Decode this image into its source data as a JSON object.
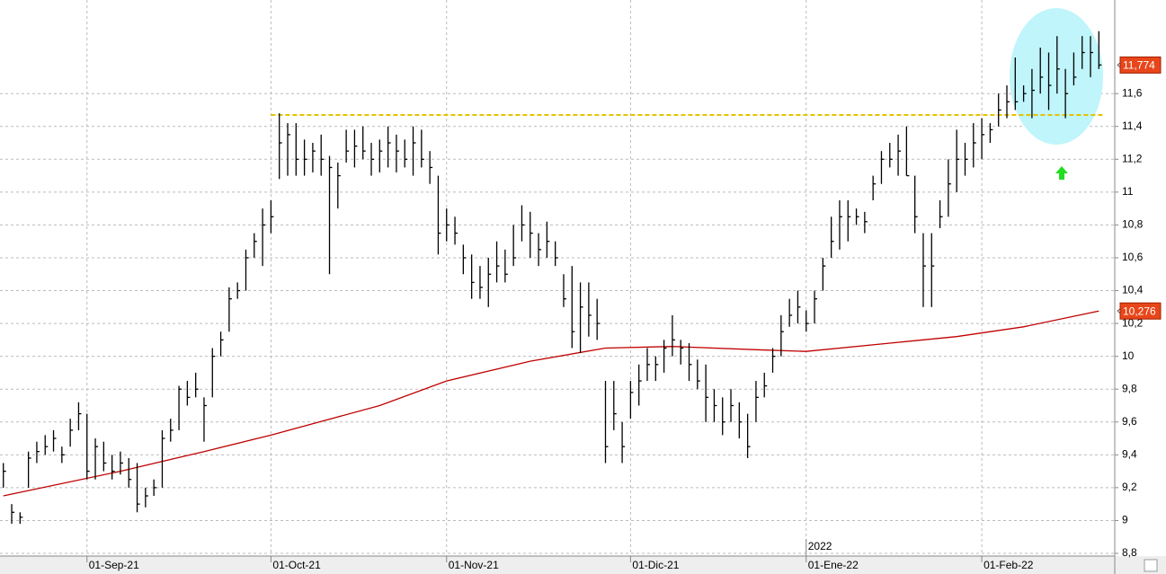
{
  "chart_data": {
    "type": "ohlc",
    "xlim": [
      -0.4,
      132.9
    ],
    "ylim": [
      8.8,
      12.17
    ],
    "yticks": [
      {
        "value": 8.8,
        "label": "8,8"
      },
      9,
      {
        "value": 9.2,
        "label": "9,2"
      },
      {
        "value": 9.4,
        "label": "9,4"
      },
      {
        "value": 9.6,
        "label": "9,6"
      },
      {
        "value": 9.8,
        "label": "9,8"
      },
      10,
      {
        "value": 10.2,
        "label": "10,2"
      },
      {
        "value": 10.4,
        "label": "10,4"
      },
      {
        "value": 10.6,
        "label": "10,6"
      },
      {
        "value": 10.8,
        "label": "10,8"
      },
      11,
      {
        "value": 11.2,
        "label": "11,2"
      },
      {
        "value": 11.4,
        "label": "11,4"
      },
      {
        "value": 11.6,
        "label": "11,6"
      }
    ],
    "xticks": [
      {
        "value": 10,
        "label": "01-Sep-21"
      },
      {
        "value": 32,
        "label": "01-Oct-21"
      },
      {
        "value": 53,
        "label": "01-Nov-21"
      },
      {
        "value": 75,
        "label": "01-Dic-21"
      },
      {
        "value": 96,
        "label": "01-Ene-22"
      },
      {
        "value": 117,
        "label": "01-Feb-22"
      }
    ],
    "year_marker": {
      "value": 96,
      "label": "2022"
    },
    "grid": true,
    "color": "#000000",
    "high": [
      9.35,
      9.1,
      9.05,
      9.42,
      9.48,
      9.52,
      9.55,
      9.45,
      9.62,
      9.72,
      9.65,
      9.5,
      9.48,
      9.4,
      9.42,
      9.38,
      9.35,
      9.2,
      9.25,
      9.55,
      9.62,
      9.82,
      9.85,
      9.9,
      9.75,
      10.05,
      10.15,
      10.42,
      10.45,
      10.65,
      10.75,
      10.9,
      10.95,
      11.48,
      11.42,
      11.42,
      11.32,
      11.3,
      11.35,
      11.22,
      11.18,
      11.38,
      11.38,
      11.4,
      11.3,
      11.32,
      11.4,
      11.35,
      11.32,
      11.4,
      11.38,
      11.25,
      11.1,
      10.9,
      10.85,
      10.68,
      10.62,
      10.55,
      10.6,
      10.7,
      10.65,
      10.8,
      10.92,
      10.88,
      10.75,
      10.82,
      10.7,
      10.5,
      10.55,
      10.45,
      10.45,
      10.35,
      9.85,
      9.85,
      9.6,
      9.85,
      9.95,
      10.05,
      10.0,
      10.1,
      10.25,
      10.1,
      10.08,
      9.98,
      9.95,
      9.8,
      9.75,
      9.8,
      9.72,
      9.65,
      9.85,
      9.9,
      10.05,
      10.25,
      10.35,
      10.4,
      10.28,
      10.4,
      10.6,
      10.85,
      10.95,
      10.95,
      10.9,
      10.88,
      11.1,
      11.25,
      11.3,
      11.35,
      11.4,
      11.1,
      10.75,
      10.75,
      10.95,
      11.2,
      11.38,
      11.3,
      11.42,
      11.45,
      11.42,
      11.6,
      11.65,
      11.82,
      11.65,
      11.75,
      11.88,
      11.85,
      11.95,
      11.75,
      11.85,
      11.95,
      11.95,
      11.98
    ],
    "low": [
      9.2,
      8.98,
      8.98,
      9.2,
      9.35,
      9.4,
      9.42,
      9.35,
      9.45,
      9.55,
      9.25,
      9.25,
      9.3,
      9.25,
      9.28,
      9.2,
      9.05,
      9.08,
      9.15,
      9.2,
      9.48,
      9.55,
      9.7,
      9.75,
      9.48,
      9.75,
      10.0,
      10.15,
      10.35,
      10.4,
      10.6,
      10.55,
      10.75,
      11.08,
      11.1,
      11.1,
      11.1,
      11.12,
      11.1,
      10.5,
      10.9,
      11.18,
      11.15,
      11.2,
      11.1,
      11.12,
      11.15,
      11.12,
      11.15,
      11.1,
      11.15,
      11.05,
      10.62,
      10.7,
      10.68,
      10.5,
      10.35,
      10.35,
      10.3,
      10.45,
      10.45,
      10.55,
      10.7,
      10.6,
      10.55,
      10.6,
      10.55,
      10.3,
      10.05,
      10.02,
      10.12,
      10.1,
      9.35,
      9.55,
      9.35,
      9.62,
      9.7,
      9.85,
      9.85,
      9.9,
      10.0,
      9.95,
      9.85,
      9.8,
      9.6,
      9.6,
      9.52,
      9.6,
      9.5,
      9.38,
      9.6,
      9.75,
      9.9,
      10.0,
      10.18,
      10.2,
      10.15,
      10.2,
      10.4,
      10.6,
      10.65,
      10.7,
      10.8,
      10.75,
      10.95,
      11.05,
      11.15,
      11.1,
      11.1,
      10.75,
      10.3,
      10.3,
      10.78,
      10.85,
      11.0,
      11.1,
      11.15,
      11.2,
      11.3,
      11.4,
      11.45,
      11.5,
      11.55,
      11.45,
      11.6,
      11.5,
      11.6,
      11.45,
      11.65,
      11.75,
      11.7,
      11.75
    ],
    "close": [
      9.3,
      9.05,
      9.02,
      9.38,
      9.42,
      9.45,
      9.5,
      9.4,
      9.55,
      9.65,
      9.3,
      9.45,
      9.35,
      9.3,
      9.35,
      9.25,
      9.1,
      9.15,
      9.2,
      9.5,
      9.55,
      9.8,
      9.75,
      9.8,
      9.7,
      10.0,
      10.1,
      10.35,
      10.4,
      10.6,
      10.7,
      10.8,
      10.85,
      11.3,
      11.35,
      11.2,
      11.2,
      11.25,
      11.2,
      11.15,
      11.1,
      11.25,
      11.28,
      11.25,
      11.2,
      11.25,
      11.3,
      11.25,
      11.2,
      11.3,
      11.2,
      11.15,
      10.75,
      10.8,
      10.75,
      10.6,
      10.45,
      10.42,
      10.5,
      10.55,
      10.5,
      10.6,
      10.8,
      10.75,
      10.65,
      10.7,
      10.6,
      10.35,
      10.15,
      10.3,
      10.25,
      10.2,
      9.45,
      9.65,
      9.45,
      9.78,
      9.85,
      9.95,
      9.95,
      10.05,
      10.1,
      10.05,
      9.95,
      9.85,
      9.75,
      9.7,
      9.6,
      9.7,
      9.6,
      9.45,
      9.75,
      9.82,
      10.0,
      10.15,
      10.25,
      10.3,
      10.2,
      10.35,
      10.55,
      10.7,
      10.85,
      10.85,
      10.85,
      10.82,
      11.05,
      11.2,
      11.2,
      11.25,
      11.1,
      10.85,
      10.55,
      10.55,
      10.85,
      11.05,
      11.2,
      11.2,
      11.3,
      11.35,
      11.38,
      11.5,
      11.55,
      11.55,
      11.6,
      11.62,
      11.7,
      11.65,
      11.75,
      11.6,
      11.7,
      11.85,
      11.85,
      11.774
    ],
    "ma": {
      "color": "#c00000",
      "x": [
        0,
        14,
        24,
        32,
        45,
        53,
        63,
        72,
        80,
        90,
        96,
        106,
        114,
        122,
        131
      ],
      "values": [
        9.15,
        9.3,
        9.42,
        9.52,
        9.7,
        9.85,
        9.97,
        10.05,
        10.06,
        10.04,
        10.03,
        10.08,
        10.12,
        10.18,
        10.276
      ]
    },
    "resistance": {
      "value": 11.47,
      "color": "#e6c200"
    },
    "last_price": {
      "value": 11.774,
      "label": "11,774"
    },
    "ma_last": {
      "value": 10.276,
      "label": "10,276"
    }
  }
}
